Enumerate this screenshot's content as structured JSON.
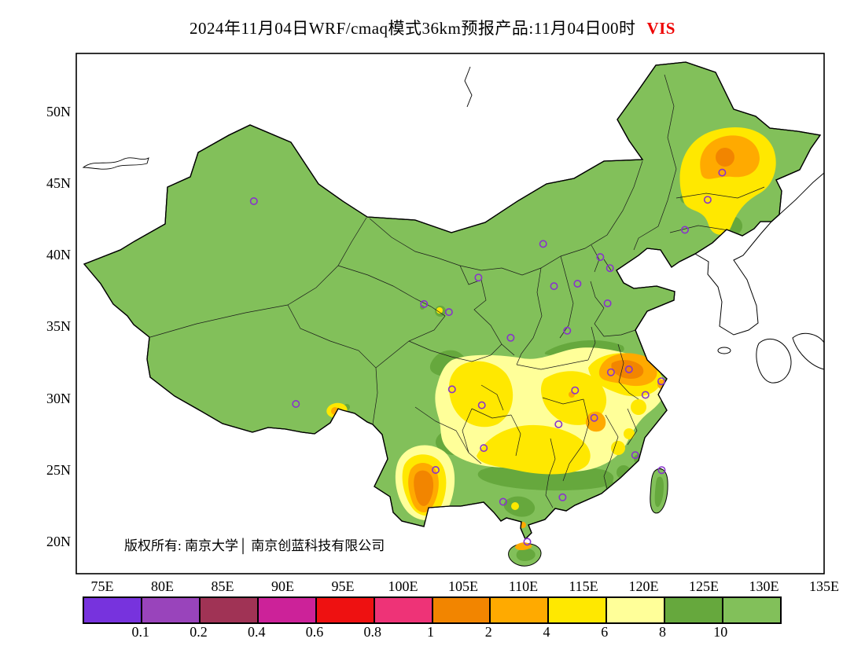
{
  "title": {
    "text": "2024年11月04日WRF/cmaq模式36km预报产品:11月04日00时",
    "suffix": "VIS",
    "suffix_color": "#EE0000"
  },
  "map": {
    "copyright": "版权所有: 南京大学│ 南京创蓝科技有限公司",
    "marker_color": "#8833CC",
    "city_markers_lonlat": [
      [
        87.6,
        43.8
      ],
      [
        91.1,
        29.65
      ],
      [
        101.75,
        36.62
      ],
      [
        103.82,
        36.06
      ],
      [
        106.27,
        38.47
      ],
      [
        108.95,
        34.27
      ],
      [
        111.65,
        40.82
      ],
      [
        112.55,
        37.87
      ],
      [
        114.5,
        38.04
      ],
      [
        116.4,
        39.9
      ],
      [
        117.2,
        39.13
      ],
      [
        117.0,
        36.67
      ],
      [
        113.65,
        34.76
      ],
      [
        123.43,
        41.8
      ],
      [
        125.32,
        43.9
      ],
      [
        126.53,
        45.8
      ],
      [
        121.47,
        31.23
      ],
      [
        118.78,
        32.06
      ],
      [
        117.28,
        31.86
      ],
      [
        120.15,
        30.28
      ],
      [
        115.89,
        28.68
      ],
      [
        119.3,
        26.08
      ],
      [
        114.3,
        30.6
      ],
      [
        112.93,
        28.23
      ],
      [
        113.26,
        23.13
      ],
      [
        108.32,
        22.82
      ],
      [
        110.33,
        20.03
      ],
      [
        104.07,
        30.67
      ],
      [
        106.55,
        29.56
      ],
      [
        106.71,
        26.57
      ],
      [
        102.71,
        25.04
      ],
      [
        121.5,
        25.03
      ]
    ]
  },
  "axes": {
    "lat_ticks": [
      {
        "label": "50N",
        "value": 50
      },
      {
        "label": "45N",
        "value": 45
      },
      {
        "label": "40N",
        "value": 40
      },
      {
        "label": "35N",
        "value": 35
      },
      {
        "label": "30N",
        "value": 30
      },
      {
        "label": "25N",
        "value": 25
      },
      {
        "label": "20N",
        "value": 20
      }
    ],
    "lon_ticks": [
      {
        "label": "75E",
        "value": 75
      },
      {
        "label": "80E",
        "value": 80
      },
      {
        "label": "85E",
        "value": 85
      },
      {
        "label": "90E",
        "value": 90
      },
      {
        "label": "95E",
        "value": 95
      },
      {
        "label": "100E",
        "value": 100
      },
      {
        "label": "105E",
        "value": 105
      },
      {
        "label": "110E",
        "value": 110
      },
      {
        "label": "115E",
        "value": 115
      },
      {
        "label": "120E",
        "value": 120
      },
      {
        "label": "125E",
        "value": 125
      },
      {
        "label": "130E",
        "value": 130
      },
      {
        "label": "135E",
        "value": 135
      }
    ]
  },
  "colorbar": {
    "colors": [
      "#7733DD",
      "#9944BB",
      "#A03355",
      "#CC2299",
      "#EE1111",
      "#EE3377",
      "#F28500",
      "#FFAA00",
      "#FFE800",
      "#FFFF99",
      "#66A83D",
      "#82C05A"
    ],
    "labels": [
      "0.1",
      "0.2",
      "0.4",
      "0.6",
      "0.8",
      "1",
      "2",
      "4",
      "6",
      "8",
      "10"
    ]
  }
}
